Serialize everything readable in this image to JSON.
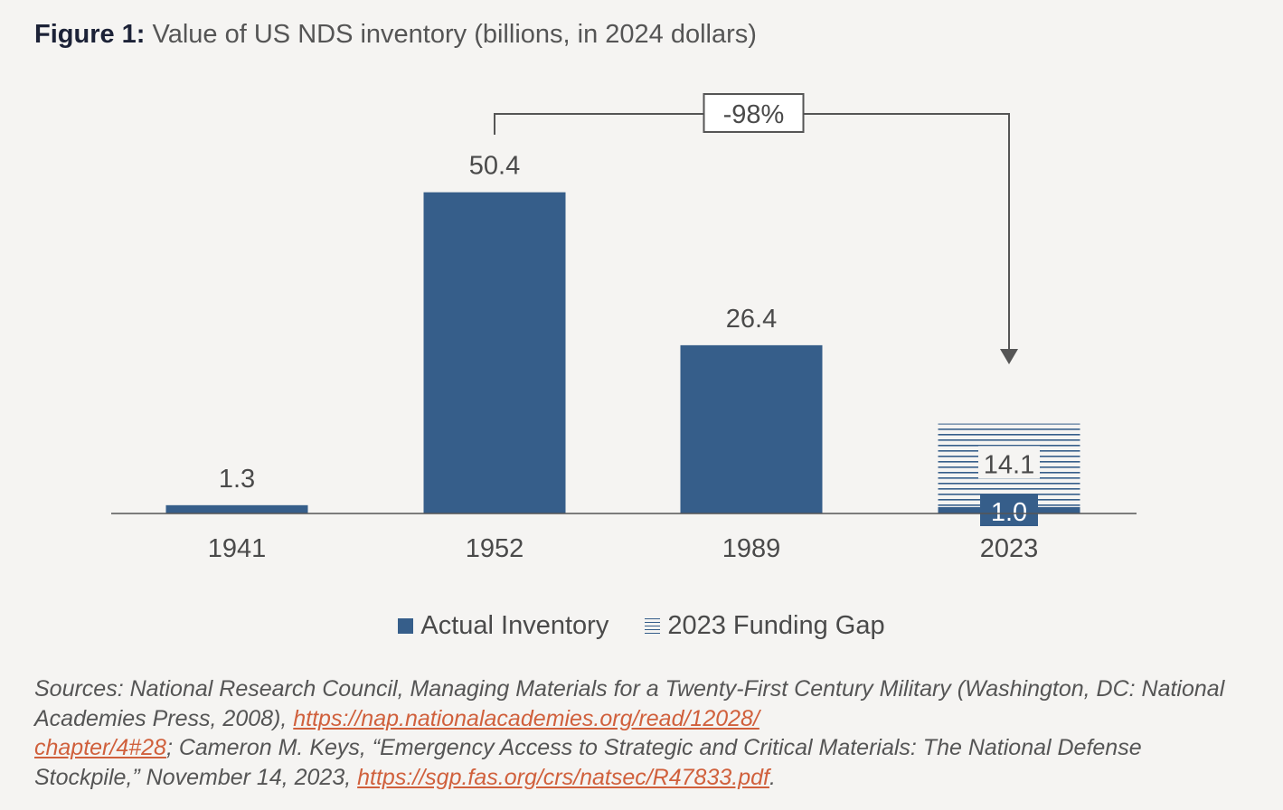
{
  "header": {
    "figure_label": "Figure 1:",
    "title": "Value of US NDS inventory (billions, in 2024 dollars)"
  },
  "chart_data": {
    "type": "bar",
    "title": "Value of US NDS inventory (billions, in 2024 dollars)",
    "categories": [
      "1941",
      "1952",
      "1989",
      "2023"
    ],
    "series": [
      {
        "name": "Actual Inventory",
        "values": [
          1.3,
          50.4,
          26.4,
          1.0
        ],
        "labels": [
          "1.3",
          "50.4",
          "26.4",
          "1.0"
        ]
      },
      {
        "name": "2023 Funding Gap",
        "values": [
          null,
          null,
          null,
          14.1
        ],
        "labels": [
          "",
          "",
          "",
          "14.1"
        ]
      }
    ],
    "annotation": {
      "text": "-98%",
      "from": "1952",
      "to": "2023"
    },
    "ylim": [
      0,
      55
    ],
    "xlabel": "",
    "ylabel": ""
  },
  "legend": {
    "actual": "Actual Inventory",
    "gap": "2023 Funding Gap"
  },
  "sources": {
    "text1": "Sources: National Research Council, Managing Materials for a Twenty-First Century Military (Washington, DC: National Academies Press, 2008), ",
    "link1_line1": "https://nap.nationalacademies.org/read/12028/",
    "link1_line2": "chapter/4#28",
    "text2": "; Cameron M. Keys, “Emergency Access to Strategic and Critical Materials: The National Defense Stockpile,” November 14, 2023, ",
    "link2": "https://sgp.fas.org/crs/natsec/R47833.pdf",
    "text3": "."
  },
  "colors": {
    "bar": "#365e8a",
    "link": "#d0603c",
    "text": "#4a4a4a",
    "background": "#f5f4f2"
  }
}
